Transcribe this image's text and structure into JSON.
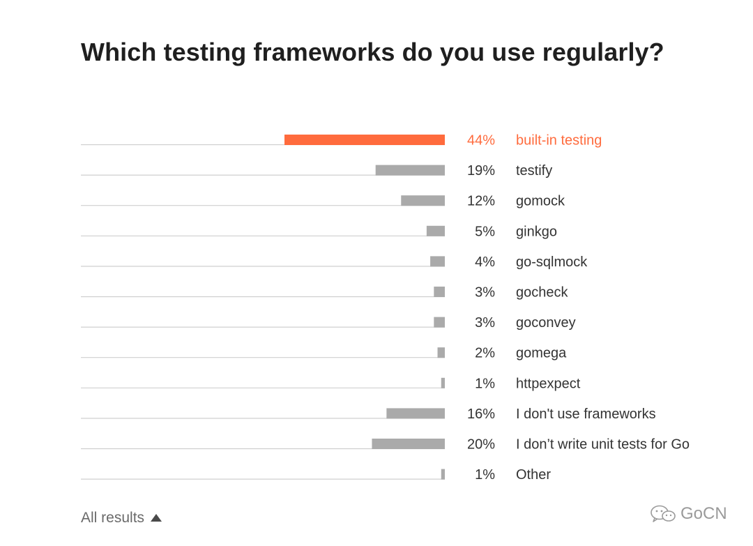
{
  "title": "Which testing frameworks do you use regularly?",
  "footer": {
    "label": "All results"
  },
  "watermark": {
    "text": "GoCN"
  },
  "colors": {
    "highlight": "#ff6b3d",
    "bar": "#aaaaaa",
    "baseline": "#cfcfcf",
    "text": "#333333"
  },
  "chart_data": {
    "type": "bar",
    "orientation": "horizontal",
    "xlim": [
      0,
      44
    ],
    "categories": [
      "built-in testing",
      "testify",
      "gomock",
      "ginkgo",
      "go-sqlmock",
      "gocheck",
      "goconvey",
      "gomega",
      "httpexpect",
      "I don't use frameworks",
      "I don’t write unit tests for Go",
      "Other"
    ],
    "values": [
      44,
      19,
      12,
      5,
      4,
      3,
      3,
      2,
      1,
      16,
      20,
      1
    ],
    "labels": [
      "44%",
      "19%",
      "12%",
      "5%",
      "4%",
      "3%",
      "3%",
      "2%",
      "1%",
      "16%",
      "20%",
      "1%"
    ],
    "highlight_index": 0
  }
}
